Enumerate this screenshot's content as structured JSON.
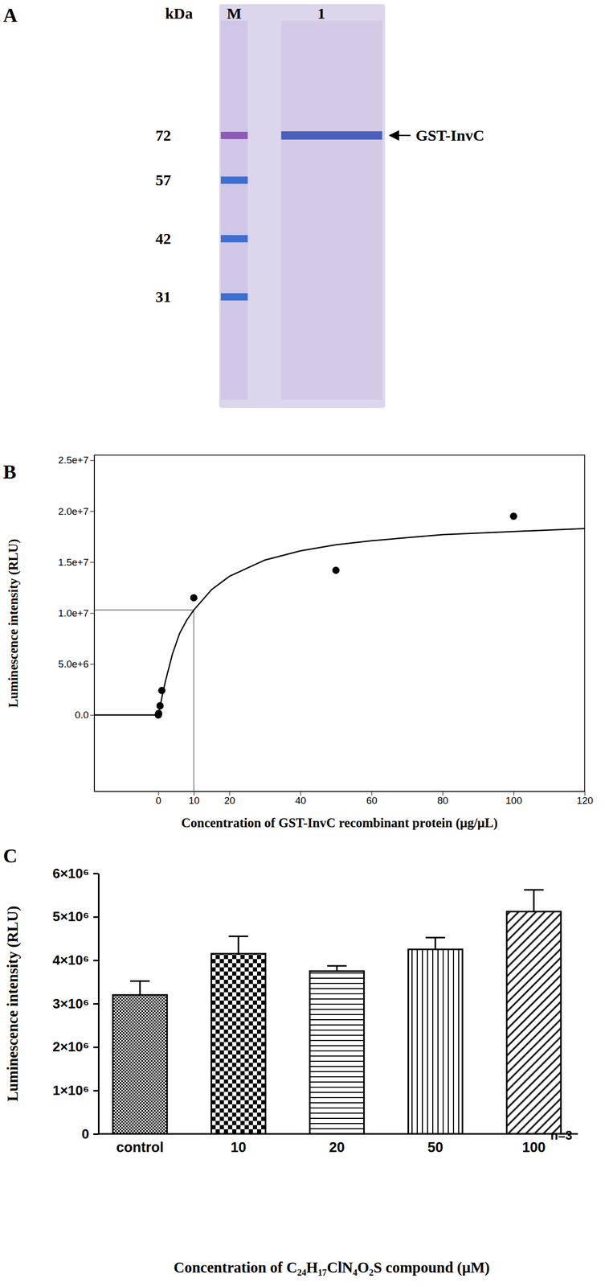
{
  "panel_labels": [
    "A",
    "B",
    "C"
  ],
  "gel": {
    "unit_label": "kDa",
    "lanes": [
      "M",
      "1"
    ],
    "marker_kda": [
      72,
      57,
      42,
      31
    ],
    "target": {
      "label": "GST-InvC",
      "kda": 72
    }
  },
  "chart_data": [
    {
      "type": "scatter",
      "xlabel": "Concentration of GST-InvC  recombinant protein (μg/μL)",
      "ylabel": "Luminescence intensity (RLU)",
      "xlim": [
        -18,
        120
      ],
      "ylim": [
        -7500000,
        25500000
      ],
      "xticks": [
        0,
        10,
        20,
        40,
        60,
        80,
        100,
        120
      ],
      "yticks": [
        {
          "value": 0,
          "label": "0.0"
        },
        {
          "value": 5000000,
          "label": "5.0e+6"
        },
        {
          "value": 10000000,
          "label": "1.0e+7"
        },
        {
          "value": 15000000,
          "label": "1.5e+7"
        },
        {
          "value": 20000000,
          "label": "2.0e+7"
        },
        {
          "value": 25000000,
          "label": "2.5e+7"
        }
      ],
      "series": [
        {
          "type": "scatter",
          "marker": "circle",
          "color": "#000000",
          "x": [
            0,
            0.05,
            0.1,
            0.5,
            1,
            10,
            50,
            100
          ],
          "values": [
            0,
            50000,
            150000,
            900000,
            2400000,
            11500000,
            14200000,
            19500000
          ]
        },
        {
          "type": "line",
          "line_style": "solid",
          "color": "#000000",
          "x": [
            -18,
            0,
            0.5,
            1,
            2,
            4,
            6,
            8,
            10,
            15,
            20,
            30,
            40,
            50,
            60,
            80,
            100,
            120
          ],
          "values": [
            0,
            0,
            800000,
            1700000,
            3300000,
            6000000,
            8000000,
            9300000,
            10300000,
            12300000,
            13600000,
            15200000,
            16100000,
            16700000,
            17100000,
            17700000,
            18000000,
            18300000
          ]
        }
      ],
      "reference_point": {
        "x": 10,
        "y": 10300000
      }
    },
    {
      "type": "bar",
      "xlabel": "Concentration of C₂₄H₁₇ClN₄O₂S compound (μM)",
      "ylabel": "Luminescence intensity (RLU)",
      "categories": [
        "control",
        "10",
        "20",
        "50",
        "100"
      ],
      "values": [
        3200000,
        4150000,
        3750000,
        4250000,
        5120000
      ],
      "errors": [
        320000,
        400000,
        120000,
        270000,
        500000
      ],
      "color": "#000000",
      "ylim": [
        0,
        6000000
      ],
      "yticks": [
        0,
        {
          "value": 1000000,
          "label": "1×10⁶"
        },
        {
          "value": 2000000,
          "label": "2×10⁶"
        },
        {
          "value": 3000000,
          "label": "3×10⁶"
        },
        {
          "value": 4000000,
          "label": "4×10⁶"
        },
        {
          "value": 5000000,
          "label": "5×10⁶"
        },
        {
          "value": 6000000,
          "label": "6×10⁶"
        }
      ],
      "annotation": "n=3"
    }
  ]
}
